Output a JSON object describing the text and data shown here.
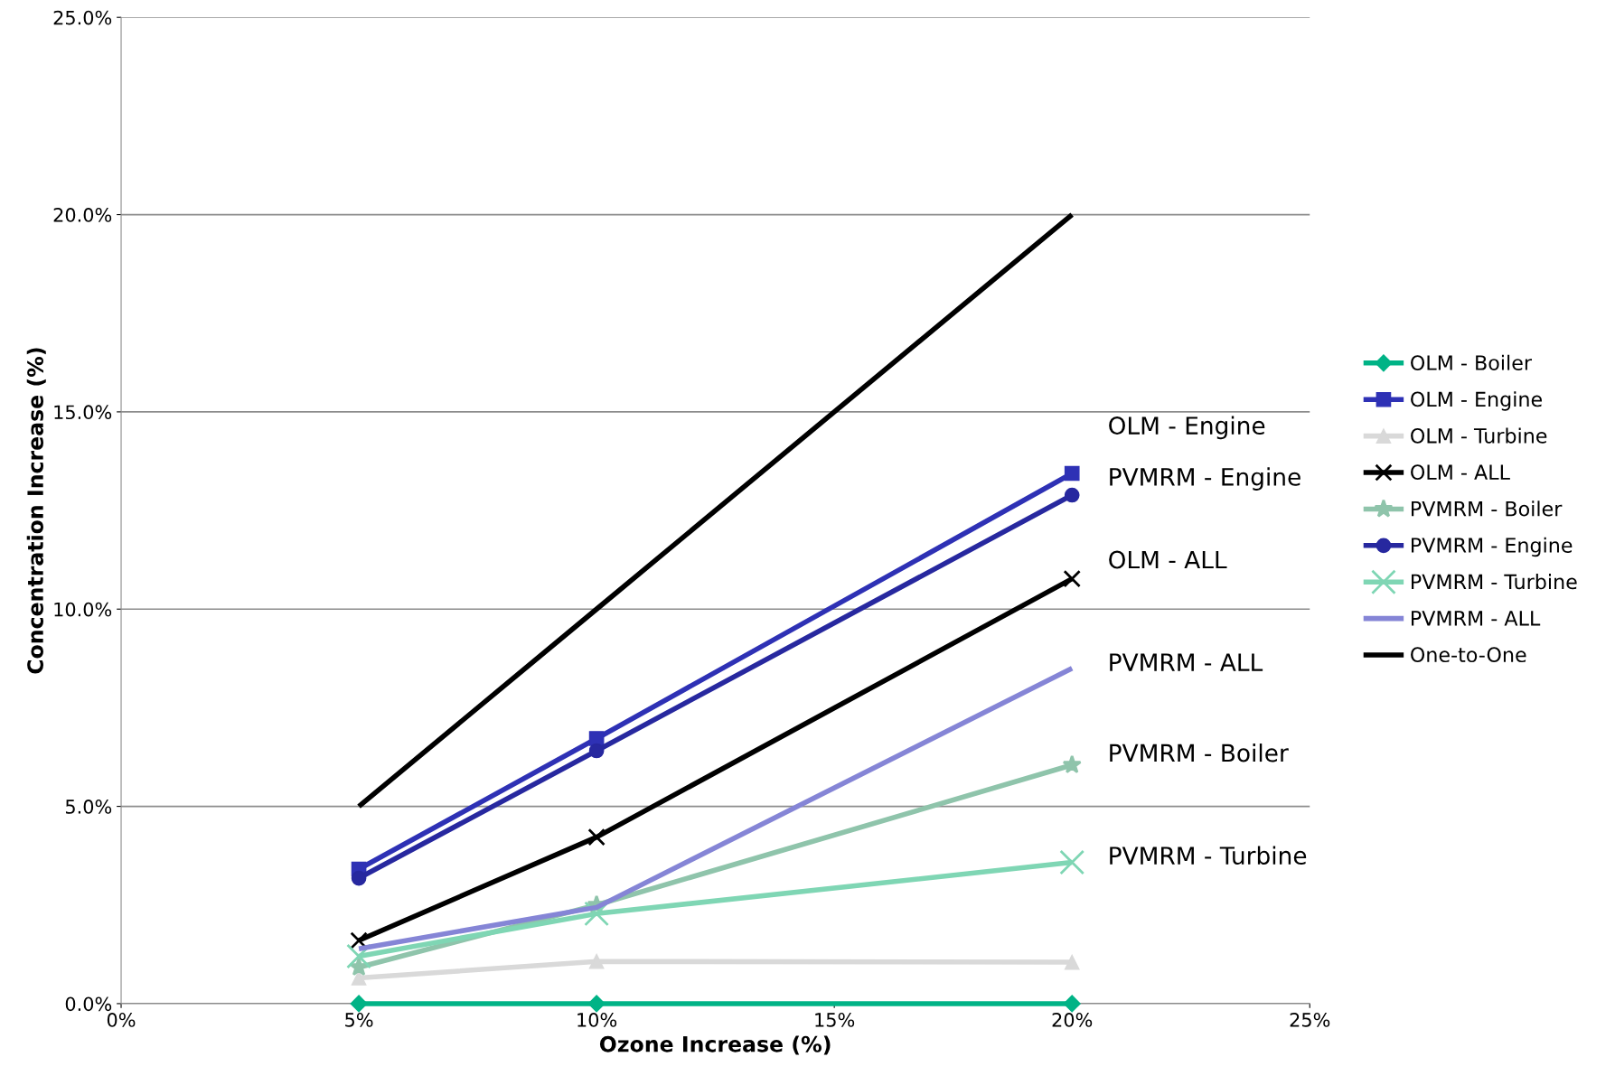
{
  "chart_data": {
    "type": "line",
    "xlabel": "Ozone Increase (%)",
    "ylabel": "Concentration Increase (%)",
    "x": [
      5,
      10,
      20
    ],
    "series": [
      {
        "name": "OLM - Boiler",
        "color": "#00b386",
        "marker": "diamond",
        "values": [
          0,
          0,
          0
        ]
      },
      {
        "name": "OLM - Engine",
        "color": "#2e31b5",
        "marker": "square",
        "values": [
          3.41,
          6.72,
          13.44
        ]
      },
      {
        "name": "OLM - Turbine",
        "color": "#d9d9d9",
        "marker": "triangle",
        "values": [
          0.65,
          1.07,
          1.05
        ]
      },
      {
        "name": "OLM - ALL",
        "color": "#000000",
        "marker": "cross",
        "values": [
          1.6,
          4.22,
          10.77
        ]
      },
      {
        "name": "PVMRM - Boiler",
        "color": "#8fc4ab",
        "marker": "star",
        "values": [
          0.92,
          2.5,
          6.05
        ]
      },
      {
        "name": "PVMRM - Engine",
        "color": "#27289f",
        "marker": "circle",
        "values": [
          3.18,
          6.41,
          12.89
        ]
      },
      {
        "name": "PVMRM - Turbine",
        "color": "#7fd6b4",
        "marker": "cross",
        "values": [
          1.2,
          2.28,
          3.58
        ]
      },
      {
        "name": "PVMRM - ALL",
        "color": "#8585d6",
        "marker": "none",
        "values": [
          1.39,
          2.44,
          8.5
        ]
      },
      {
        "name": "One-to-One",
        "color": "#000000",
        "marker": "none",
        "values": [
          5,
          10,
          20
        ]
      }
    ],
    "xlim": [
      0,
      25
    ],
    "xticks": [
      {
        "value": 0,
        "label": "0%"
      },
      {
        "value": 5,
        "label": "5%"
      },
      {
        "value": 10,
        "label": "10%"
      },
      {
        "value": 15,
        "label": "15%"
      },
      {
        "value": 20,
        "label": "20%"
      },
      {
        "value": 25,
        "label": "25%"
      }
    ],
    "ylim": [
      0,
      25
    ],
    "yticks": [
      {
        "value": 0,
        "label": "0.0%"
      },
      {
        "value": 5,
        "label": "5.0%"
      },
      {
        "value": 10,
        "label": "10.0%"
      },
      {
        "value": 15,
        "label": "15.0%"
      },
      {
        "value": 20,
        "label": "20.0%"
      },
      {
        "value": 25,
        "label": "25.0%"
      }
    ],
    "grid": "y",
    "legend": "right",
    "line_style": "solid",
    "annotations": [
      "OLM - Engine",
      "PVMRM - Engine",
      "OLM - ALL",
      "PVMRM - ALL",
      "PVMRM - Boiler",
      "PVMRM - Turbine"
    ]
  }
}
